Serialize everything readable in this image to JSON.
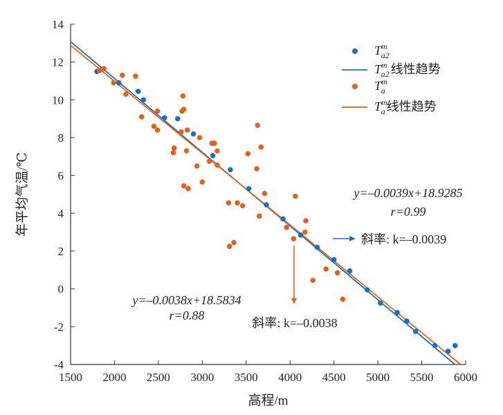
{
  "chart_data": {
    "type": "scatter",
    "xlabel": "高程/m",
    "ylabel": "年平均气温/℃",
    "xlim": [
      1500,
      6000
    ],
    "ylim": [
      -4,
      14
    ],
    "x_ticks": [
      1500,
      2000,
      2500,
      3000,
      3500,
      4000,
      4500,
      5000,
      5500,
      6000
    ],
    "y_ticks": [
      -4,
      -2,
      0,
      2,
      4,
      6,
      8,
      10,
      12,
      14
    ],
    "grid": false,
    "legend_position": "top-right",
    "series": [
      {
        "key": "ta2",
        "name": "T_a2^m",
        "legend_base": "T",
        "legend_sub": "a2",
        "legend_sup": "m",
        "trend_suffix": "线性趋势",
        "color": "#1f6fb8",
        "points": [
          [
            1800,
            11.5
          ],
          [
            2050,
            10.9
          ],
          [
            2270,
            10.45
          ],
          [
            2330,
            10.0
          ],
          [
            2570,
            9.05
          ],
          [
            2720,
            9.0
          ],
          [
            2900,
            8.2
          ],
          [
            3120,
            7.05
          ],
          [
            3320,
            6.3
          ],
          [
            3530,
            5.3
          ],
          [
            3730,
            4.45
          ],
          [
            3920,
            3.7
          ],
          [
            4120,
            2.85
          ],
          [
            4310,
            2.2
          ],
          [
            4500,
            1.55
          ],
          [
            4680,
            0.95
          ],
          [
            4880,
            -0.05
          ],
          [
            5030,
            -0.75
          ],
          [
            5220,
            -1.25
          ],
          [
            5330,
            -1.7
          ],
          [
            5430,
            -2.25
          ],
          [
            5650,
            -3.0
          ],
          [
            5800,
            -3.3
          ],
          [
            5880,
            -3.0
          ]
        ],
        "trend": {
          "slope": -0.0039,
          "intercept": 18.9285
        }
      },
      {
        "key": "ta",
        "name": "T_a^m",
        "legend_base": "T",
        "legend_sub": "a",
        "legend_sup": "m",
        "trend_suffix": "线性趋势",
        "color": "#e0621c",
        "points": [
          [
            1830,
            11.55
          ],
          [
            1880,
            11.65
          ],
          [
            1990,
            10.9
          ],
          [
            2090,
            11.3
          ],
          [
            2130,
            10.3
          ],
          [
            2240,
            11.25
          ],
          [
            2310,
            9.1
          ],
          [
            2450,
            8.6
          ],
          [
            2490,
            8.4
          ],
          [
            2490,
            9.4
          ],
          [
            2670,
            7.2
          ],
          [
            2680,
            7.45
          ],
          [
            2760,
            8.3
          ],
          [
            2770,
            9.4
          ],
          [
            2790,
            9.5
          ],
          [
            2780,
            10.2
          ],
          [
            2790,
            5.45
          ],
          [
            2820,
            7.3
          ],
          [
            2830,
            8.4
          ],
          [
            2840,
            5.3
          ],
          [
            2940,
            6.5
          ],
          [
            2970,
            8.0
          ],
          [
            3000,
            5.65
          ],
          [
            3080,
            6.75
          ],
          [
            3110,
            7.7
          ],
          [
            3140,
            7.7
          ],
          [
            3170,
            7.3
          ],
          [
            3170,
            6.55
          ],
          [
            3300,
            4.55
          ],
          [
            3310,
            2.25
          ],
          [
            3360,
            2.45
          ],
          [
            3400,
            4.55
          ],
          [
            3460,
            4.4
          ],
          [
            3520,
            7.15
          ],
          [
            3620,
            6.35
          ],
          [
            3630,
            8.65
          ],
          [
            3650,
            3.85
          ],
          [
            3670,
            7.5
          ],
          [
            3710,
            5.05
          ],
          [
            3960,
            3.25
          ],
          [
            4040,
            2.65
          ],
          [
            4060,
            4.9
          ],
          [
            4170,
            3.0
          ],
          [
            4180,
            3.6
          ],
          [
            4260,
            0.45
          ],
          [
            4410,
            1.05
          ],
          [
            4540,
            0.85
          ],
          [
            4600,
            -0.55
          ]
        ],
        "trend": {
          "slope": -0.0038,
          "intercept": 18.5834
        }
      }
    ],
    "annotations": [
      {
        "key": "eq_ta2",
        "equation": "y=–0.0039x+18.9285",
        "r_text": "r=0.99",
        "slope_text": "斜率: k=–0.0039",
        "color": "#1f6fb8"
      },
      {
        "key": "eq_ta",
        "equation": "y=–0.0038x+18.5834",
        "r_text": "r=0.88",
        "slope_text": "斜率: k=–0.0038",
        "color": "#e0621c"
      }
    ]
  }
}
